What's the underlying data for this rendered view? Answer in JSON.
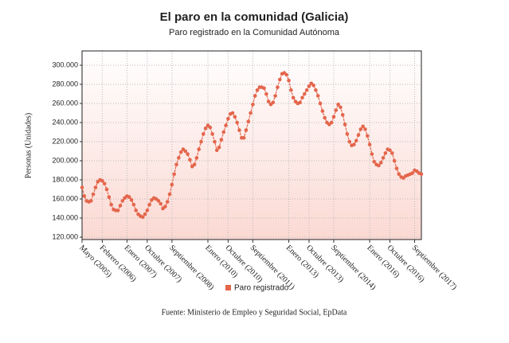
{
  "chart_data": {
    "type": "line",
    "title": "El paro en la comunidad (Galicia)",
    "subtitle": "Paro registrado en la Comunidad Autónoma",
    "y_label": "Personas (Unidades)",
    "source": "Fuente: Ministerio de Empleo y Seguridad Social, EpData",
    "categories": [
      "Mayo (2005)",
      null,
      null,
      null,
      null,
      null,
      null,
      null,
      null,
      "Febrero (2006)",
      null,
      null,
      null,
      null,
      null,
      null,
      null,
      null,
      null,
      null,
      "Enero (2007)",
      null,
      null,
      null,
      null,
      null,
      null,
      null,
      null,
      "Octubre (2007)",
      null,
      null,
      null,
      null,
      null,
      null,
      null,
      null,
      null,
      null,
      "Septiembre (2008)",
      null,
      null,
      null,
      null,
      null,
      null,
      null,
      null,
      null,
      null,
      null,
      null,
      null,
      null,
      null,
      "Enero (2010)",
      null,
      null,
      null,
      null,
      null,
      null,
      null,
      null,
      "Octubre (2010)",
      null,
      null,
      null,
      null,
      null,
      null,
      null,
      null,
      null,
      null,
      "Septiembre (2011)",
      null,
      null,
      null,
      null,
      null,
      null,
      null,
      null,
      null,
      null,
      null,
      null,
      null,
      null,
      null,
      "Enero (2013)",
      null,
      null,
      null,
      null,
      null,
      null,
      null,
      null,
      "Octubre (2013)",
      null,
      null,
      null,
      null,
      null,
      null,
      null,
      null,
      null,
      null,
      "Septiembre (2014)",
      null,
      null,
      null,
      null,
      null,
      null,
      null,
      null,
      null,
      null,
      null,
      null,
      null,
      null,
      null,
      "Enero (2016)",
      null,
      null,
      null,
      null,
      null,
      null,
      null,
      null,
      "Octubre (2016)",
      null,
      null,
      null,
      null,
      null,
      null,
      null,
      null,
      null,
      null,
      "Septiembre (2017)",
      null,
      null,
      null
    ],
    "series": [
      {
        "name": "Paro registrado",
        "color": "#e4664c",
        "values": [
          172000,
          163000,
          158000,
          157000,
          158000,
          165000,
          172000,
          178000,
          180000,
          179000,
          176000,
          170000,
          162000,
          154000,
          149000,
          148000,
          148000,
          153000,
          158000,
          161000,
          163000,
          162000,
          159000,
          154000,
          148000,
          144000,
          142000,
          141000,
          144000,
          148000,
          154000,
          159000,
          161000,
          160000,
          158000,
          155000,
          150000,
          152000,
          157000,
          165000,
          175000,
          186000,
          196000,
          203000,
          209000,
          212000,
          210000,
          207000,
          201000,
          194000,
          196000,
          203000,
          212000,
          220000,
          228000,
          234000,
          237000,
          235000,
          228000,
          220000,
          211000,
          214000,
          222000,
          230000,
          237000,
          244000,
          249000,
          250000,
          246000,
          240000,
          232000,
          224000,
          224000,
          232000,
          241000,
          250000,
          259000,
          268000,
          274000,
          277000,
          277000,
          276000,
          270000,
          262000,
          259000,
          261000,
          268000,
          277000,
          285000,
          291000,
          292000,
          290000,
          284000,
          274000,
          266000,
          262000,
          260000,
          261000,
          266000,
          270000,
          274000,
          278000,
          281000,
          279000,
          274000,
          268000,
          260000,
          252000,
          245000,
          240000,
          238000,
          240000,
          246000,
          253000,
          259000,
          256000,
          248000,
          238000,
          228000,
          220000,
          216000,
          217000,
          221000,
          227000,
          233000,
          236000,
          233000,
          226000,
          217000,
          207000,
          199000,
          196000,
          195000,
          198000,
          203000,
          208000,
          212000,
          211000,
          208000,
          200000,
          192000,
          186000,
          183000,
          182000,
          184000,
          185000,
          186000,
          187000,
          190000,
          189000,
          187000,
          186000
        ]
      }
    ],
    "ylim": [
      117500,
      315000
    ],
    "yticks": [
      {
        "value": 120000,
        "label": "120.000"
      },
      {
        "value": 140000,
        "label": "140.000"
      },
      {
        "value": 160000,
        "label": "160.000"
      },
      {
        "value": 180000,
        "label": "180.000"
      },
      {
        "value": 200000,
        "label": "200.000"
      },
      {
        "value": 220000,
        "label": "220.000"
      },
      {
        "value": 240000,
        "label": "240.000"
      },
      {
        "value": 260000,
        "label": "260.000"
      },
      {
        "value": 280000,
        "label": "280.000"
      },
      {
        "value": 300000,
        "label": "300.000"
      }
    ],
    "grid": true,
    "legend": "bottom"
  }
}
